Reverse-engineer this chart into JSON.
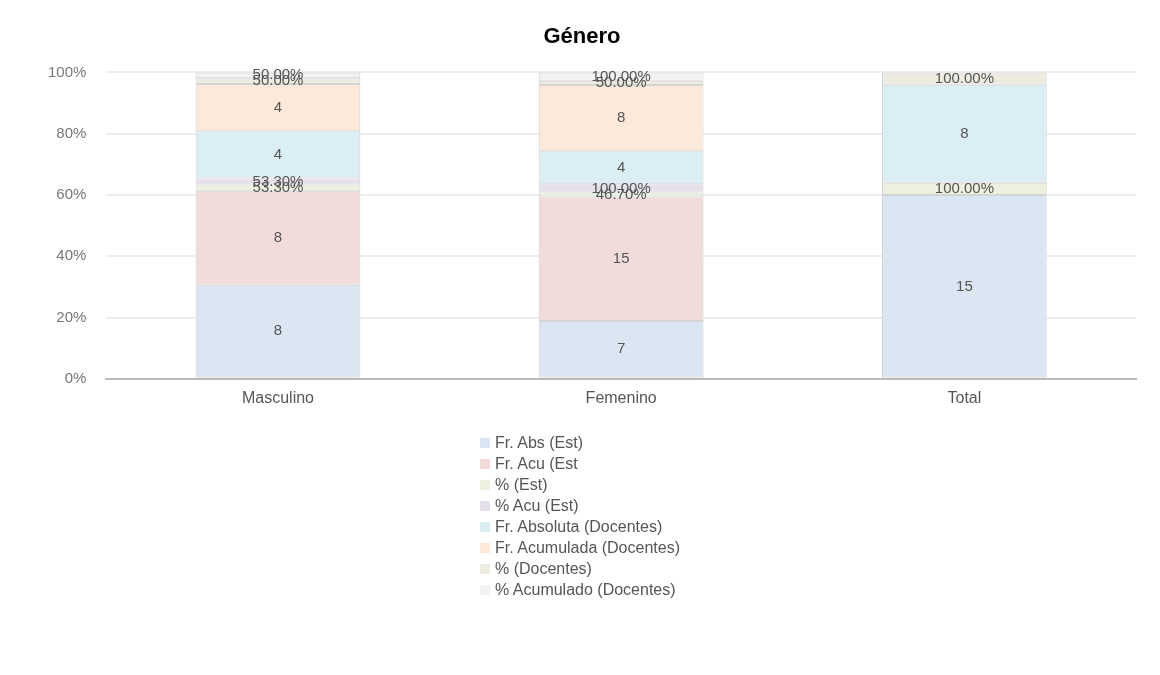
{
  "chart_data": {
    "type": "bar",
    "title": "Género",
    "stacked": true,
    "categories": [
      "Masculino",
      "Femenino",
      "Total"
    ],
    "ylim": [
      0,
      100
    ],
    "yticks": [
      {
        "value": 0,
        "label": "0%"
      },
      {
        "value": 20,
        "label": "20%"
      },
      {
        "value": 40,
        "label": "40%"
      },
      {
        "value": 60,
        "label": "60%"
      },
      {
        "value": 80,
        "label": "80%"
      },
      {
        "value": 100,
        "label": "100%"
      }
    ],
    "grid": "y",
    "legend": "bottom",
    "series": [
      {
        "name": "Fr. Abs (Est)",
        "color": "#dce6f2",
        "values": [
          30.7,
          18.9,
          60
        ]
      },
      {
        "name": "Fr. Acu (Est",
        "color": "#f2dcdb",
        "values": [
          30.7,
          40.6,
          null
        ]
      },
      {
        "name": "% (Est)",
        "color": "#ebf1de",
        "values": [
          2.0,
          1.3,
          4
        ]
      },
      {
        "name": "% Acu (Est)",
        "color": "#e6e0ec",
        "values": [
          2.0,
          2.7,
          null
        ]
      },
      {
        "name": "Fr. Absoluta (Docentes)",
        "color": "#dbeef4",
        "values": [
          15.4,
          10.8,
          32
        ]
      },
      {
        "name": "Fr. Acumulada (Docentes)",
        "color": "#fde9d9",
        "values": [
          15.4,
          21.6,
          null
        ]
      },
      {
        "name": "% (Docentes)",
        "color": "#eeece1",
        "values": [
          1.9,
          1.4,
          4
        ]
      },
      {
        "name": "% Acumulado (Docentes)",
        "color": "#f2f2f2",
        "values": [
          1.9,
          2.7,
          null
        ]
      }
    ],
    "annotations": [
      "8",
      "8",
      "53.30%",
      "53.30%",
      "4",
      "4",
      "50.00%",
      "50.00%",
      "7",
      "15",
      "46.70%",
      "100.00%",
      "4",
      "8",
      "50.00%",
      "100.00%",
      "15",
      "100.00%",
      "8",
      "100.00%"
    ]
  }
}
